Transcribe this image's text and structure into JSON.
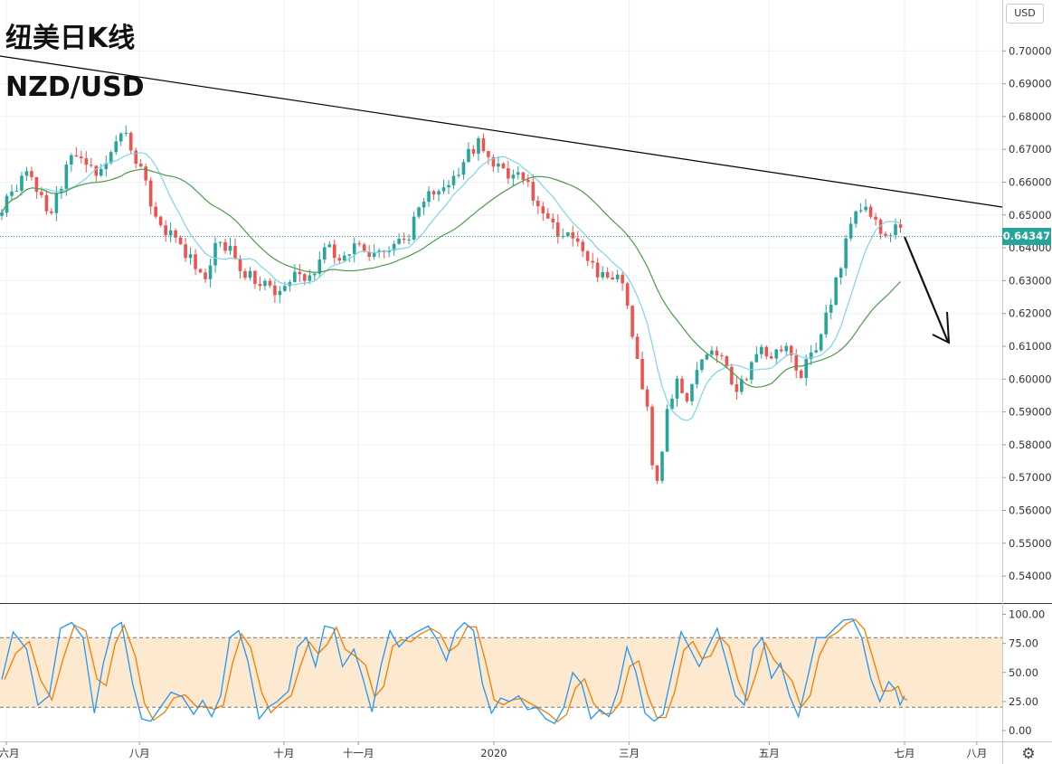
{
  "title_line1": "纽美日K线",
  "title_line2": "NZD/USD",
  "currency_label": "USD",
  "current_price_label": "0.64347",
  "settings_icon": "gear-icon",
  "colors": {
    "up": "#26a69a",
    "down": "#ef5350",
    "ma_short": "#7fd3e8",
    "ma_long": "#4c9a4c",
    "trendline": "#000000",
    "stoch_k": "#2196f3",
    "stoch_d": "#f57c00",
    "stoch_band": "#fde9d0",
    "price_line": "#26a69a"
  },
  "chart_data": [
    {
      "type": "candlestick",
      "symbol": "NZD/USD",
      "interval": "daily",
      "y_ticks": [
        "0.70000",
        "0.69000",
        "0.68000",
        "0.67000",
        "0.66000",
        "0.65000",
        "0.64000",
        "0.63000",
        "0.62000",
        "0.61000",
        "0.60000",
        "0.59000",
        "0.58000",
        "0.57000",
        "0.56000",
        "0.55000",
        "0.54000"
      ],
      "x_ticks": [
        "六月",
        "八月",
        "十月",
        "十一月",
        "2020",
        "三月",
        "五月",
        "七月",
        "八月"
      ],
      "ylim": [
        0.535,
        0.705
      ],
      "last_price": 0.64347,
      "close_path": [
        {
          "d": 0,
          "v": 0.652
        },
        {
          "d": 6,
          "v": 0.658
        },
        {
          "d": 11,
          "v": 0.663
        },
        {
          "d": 16,
          "v": 0.658
        },
        {
          "d": 21,
          "v": 0.651
        },
        {
          "d": 26,
          "v": 0.658
        },
        {
          "d": 31,
          "v": 0.669
        },
        {
          "d": 36,
          "v": 0.667
        },
        {
          "d": 42,
          "v": 0.662
        },
        {
          "d": 48,
          "v": 0.668
        },
        {
          "d": 53,
          "v": 0.677
        },
        {
          "d": 58,
          "v": 0.668
        },
        {
          "d": 63,
          "v": 0.661
        },
        {
          "d": 67,
          "v": 0.652
        },
        {
          "d": 72,
          "v": 0.646
        },
        {
          "d": 78,
          "v": 0.641
        },
        {
          "d": 84,
          "v": 0.636
        },
        {
          "d": 90,
          "v": 0.631
        },
        {
          "d": 95,
          "v": 0.642
        },
        {
          "d": 101,
          "v": 0.639
        },
        {
          "d": 107,
          "v": 0.633
        },
        {
          "d": 112,
          "v": 0.63
        },
        {
          "d": 118,
          "v": 0.628
        },
        {
          "d": 124,
          "v": 0.626
        },
        {
          "d": 129,
          "v": 0.631
        },
        {
          "d": 134,
          "v": 0.63
        },
        {
          "d": 139,
          "v": 0.633
        },
        {
          "d": 145,
          "v": 0.641
        },
        {
          "d": 150,
          "v": 0.636
        },
        {
          "d": 156,
          "v": 0.641
        },
        {
          "d": 162,
          "v": 0.637
        },
        {
          "d": 168,
          "v": 0.64
        },
        {
          "d": 174,
          "v": 0.641
        },
        {
          "d": 179,
          "v": 0.642
        },
        {
          "d": 184,
          "v": 0.651
        },
        {
          "d": 190,
          "v": 0.657
        },
        {
          "d": 195,
          "v": 0.657
        },
        {
          "d": 200,
          "v": 0.66
        },
        {
          "d": 206,
          "v": 0.668
        },
        {
          "d": 211,
          "v": 0.672
        },
        {
          "d": 216,
          "v": 0.666
        },
        {
          "d": 221,
          "v": 0.664
        },
        {
          "d": 226,
          "v": 0.662
        },
        {
          "d": 232,
          "v": 0.66
        },
        {
          "d": 237,
          "v": 0.653
        },
        {
          "d": 242,
          "v": 0.648
        },
        {
          "d": 247,
          "v": 0.645
        },
        {
          "d": 252,
          "v": 0.645
        },
        {
          "d": 257,
          "v": 0.64
        },
        {
          "d": 262,
          "v": 0.634
        },
        {
          "d": 267,
          "v": 0.63
        },
        {
          "d": 272,
          "v": 0.633
        },
        {
          "d": 276,
          "v": 0.628
        },
        {
          "d": 279,
          "v": 0.615
        },
        {
          "d": 282,
          "v": 0.605
        },
        {
          "d": 286,
          "v": 0.59
        },
        {
          "d": 289,
          "v": 0.567
        },
        {
          "d": 292,
          "v": 0.575
        },
        {
          "d": 295,
          "v": 0.59
        },
        {
          "d": 299,
          "v": 0.6
        },
        {
          "d": 304,
          "v": 0.593
        },
        {
          "d": 310,
          "v": 0.605
        },
        {
          "d": 316,
          "v": 0.61
        },
        {
          "d": 321,
          "v": 0.602
        },
        {
          "d": 326,
          "v": 0.596
        },
        {
          "d": 331,
          "v": 0.602
        },
        {
          "d": 336,
          "v": 0.611
        },
        {
          "d": 341,
          "v": 0.605
        },
        {
          "d": 346,
          "v": 0.611
        },
        {
          "d": 351,
          "v": 0.605
        },
        {
          "d": 354,
          "v": 0.598
        },
        {
          "d": 357,
          "v": 0.606
        },
        {
          "d": 362,
          "v": 0.611
        },
        {
          "d": 367,
          "v": 0.623
        },
        {
          "d": 372,
          "v": 0.635
        },
        {
          "d": 377,
          "v": 0.65
        },
        {
          "d": 382,
          "v": 0.654
        },
        {
          "d": 387,
          "v": 0.647
        },
        {
          "d": 392,
          "v": 0.643
        },
        {
          "d": 397,
          "v": 0.647
        },
        {
          "d": 400,
          "v": 0.643
        }
      ],
      "stoch_k_path": [
        {
          "d": 0,
          "v": 44
        },
        {
          "d": 5,
          "v": 85
        },
        {
          "d": 11,
          "v": 70
        },
        {
          "d": 16,
          "v": 22
        },
        {
          "d": 21,
          "v": 30
        },
        {
          "d": 26,
          "v": 88
        },
        {
          "d": 31,
          "v": 93
        },
        {
          "d": 36,
          "v": 80
        },
        {
          "d": 41,
          "v": 15
        },
        {
          "d": 45,
          "v": 58
        },
        {
          "d": 49,
          "v": 88
        },
        {
          "d": 53,
          "v": 93
        },
        {
          "d": 58,
          "v": 40
        },
        {
          "d": 62,
          "v": 10
        },
        {
          "d": 66,
          "v": 8
        },
        {
          "d": 71,
          "v": 22
        },
        {
          "d": 75,
          "v": 33
        },
        {
          "d": 80,
          "v": 29
        },
        {
          "d": 85,
          "v": 14
        },
        {
          "d": 89,
          "v": 26
        },
        {
          "d": 93,
          "v": 12
        },
        {
          "d": 97,
          "v": 30
        },
        {
          "d": 101,
          "v": 80
        },
        {
          "d": 105,
          "v": 86
        },
        {
          "d": 109,
          "v": 60
        },
        {
          "d": 114,
          "v": 10
        },
        {
          "d": 118,
          "v": 20
        },
        {
          "d": 122,
          "v": 25
        },
        {
          "d": 127,
          "v": 34
        },
        {
          "d": 131,
          "v": 72
        },
        {
          "d": 135,
          "v": 80
        },
        {
          "d": 139,
          "v": 55
        },
        {
          "d": 143,
          "v": 90
        },
        {
          "d": 147,
          "v": 88
        },
        {
          "d": 151,
          "v": 55
        },
        {
          "d": 156,
          "v": 70
        },
        {
          "d": 160,
          "v": 45
        },
        {
          "d": 164,
          "v": 16
        },
        {
          "d": 168,
          "v": 56
        },
        {
          "d": 172,
          "v": 86
        },
        {
          "d": 176,
          "v": 72
        },
        {
          "d": 180,
          "v": 80
        },
        {
          "d": 184,
          "v": 85
        },
        {
          "d": 189,
          "v": 90
        },
        {
          "d": 193,
          "v": 78
        },
        {
          "d": 197,
          "v": 60
        },
        {
          "d": 201,
          "v": 85
        },
        {
          "d": 205,
          "v": 93
        },
        {
          "d": 209,
          "v": 86
        },
        {
          "d": 213,
          "v": 40
        },
        {
          "d": 217,
          "v": 15
        },
        {
          "d": 221,
          "v": 28
        },
        {
          "d": 225,
          "v": 25
        },
        {
          "d": 229,
          "v": 30
        },
        {
          "d": 233,
          "v": 18
        },
        {
          "d": 237,
          "v": 20
        },
        {
          "d": 241,
          "v": 10
        },
        {
          "d": 245,
          "v": 6
        },
        {
          "d": 249,
          "v": 20
        },
        {
          "d": 253,
          "v": 50
        },
        {
          "d": 257,
          "v": 40
        },
        {
          "d": 261,
          "v": 10
        },
        {
          "d": 265,
          "v": 18
        },
        {
          "d": 269,
          "v": 12
        },
        {
          "d": 273,
          "v": 35
        },
        {
          "d": 277,
          "v": 72
        },
        {
          "d": 281,
          "v": 50
        },
        {
          "d": 285,
          "v": 15
        },
        {
          "d": 289,
          "v": 8
        },
        {
          "d": 293,
          "v": 14
        },
        {
          "d": 297,
          "v": 50
        },
        {
          "d": 301,
          "v": 85
        },
        {
          "d": 305,
          "v": 70
        },
        {
          "d": 309,
          "v": 55
        },
        {
          "d": 313,
          "v": 72
        },
        {
          "d": 317,
          "v": 88
        },
        {
          "d": 321,
          "v": 60
        },
        {
          "d": 325,
          "v": 30
        },
        {
          "d": 329,
          "v": 22
        },
        {
          "d": 333,
          "v": 70
        },
        {
          "d": 337,
          "v": 80
        },
        {
          "d": 341,
          "v": 45
        },
        {
          "d": 345,
          "v": 58
        },
        {
          "d": 349,
          "v": 30
        },
        {
          "d": 353,
          "v": 12
        },
        {
          "d": 357,
          "v": 45
        },
        {
          "d": 361,
          "v": 80
        },
        {
          "d": 365,
          "v": 80
        },
        {
          "d": 369,
          "v": 88
        },
        {
          "d": 373,
          "v": 95
        },
        {
          "d": 377,
          "v": 96
        },
        {
          "d": 381,
          "v": 80
        },
        {
          "d": 385,
          "v": 45
        },
        {
          "d": 389,
          "v": 25
        },
        {
          "d": 393,
          "v": 42
        },
        {
          "d": 396,
          "v": 35
        },
        {
          "d": 398,
          "v": 22
        },
        {
          "d": 400,
          "v": 30
        }
      ],
      "stoch_upper": 80,
      "stoch_lower": 20,
      "stoch_y_ticks": [
        "100.00",
        "75.00",
        "50.00",
        "25.00",
        "0.00"
      ],
      "stoch_ylim": [
        -5,
        105
      ]
    }
  ]
}
